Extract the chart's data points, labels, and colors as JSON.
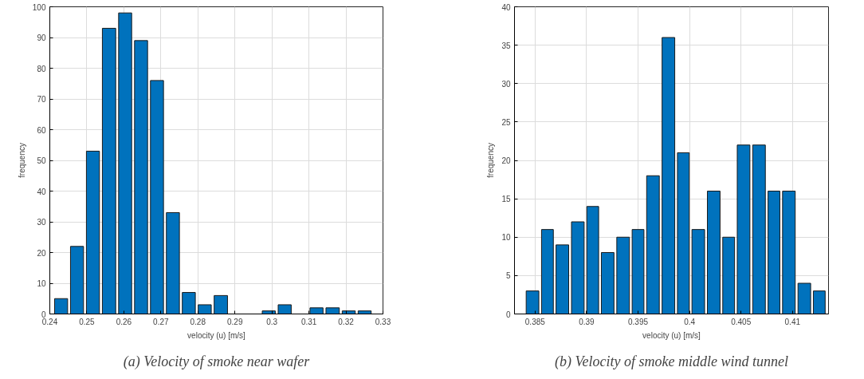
{
  "chart_data": [
    {
      "type": "histogram",
      "title": "(a) Velocity of smoke near wafer",
      "xlabel": "velocity (u) [m/s]",
      "ylabel": "frequency",
      "color": "#0072bd",
      "bins": [
        0.2409,
        0.2452,
        0.2495,
        0.2538,
        0.2582,
        0.2625,
        0.2668,
        0.2711,
        0.2754,
        0.2797,
        0.284,
        0.2884,
        0.2927,
        0.297,
        0.3013,
        0.3056,
        0.3099,
        0.3142,
        0.3186,
        0.3229,
        0.3272
      ],
      "values": [
        5,
        22,
        53,
        93,
        98,
        89,
        76,
        33,
        7,
        3,
        6,
        0,
        0,
        1,
        3,
        0,
        2,
        2,
        1,
        1
      ],
      "xlim": [
        0.24,
        0.33
      ],
      "ylim": [
        0,
        100
      ],
      "xticks": [
        0.24,
        0.25,
        0.26,
        0.27,
        0.28,
        0.29,
        0.3,
        0.31,
        0.32,
        0.33
      ],
      "yticks": [
        0,
        10,
        20,
        30,
        40,
        50,
        60,
        70,
        80,
        90,
        100
      ],
      "grid": true
    },
    {
      "type": "histogram",
      "title": "(b) Velocity of smoke middle wind tunnel",
      "xlabel": "velocity (u) [m/s]",
      "ylabel": "frequency",
      "color": "#0072bd",
      "bins": [
        0.384,
        0.3855,
        0.3869,
        0.3884,
        0.3899,
        0.3913,
        0.3928,
        0.3943,
        0.3957,
        0.3972,
        0.3987,
        0.4001,
        0.4016,
        0.4031,
        0.4045,
        0.406,
        0.4075,
        0.4089,
        0.4104,
        0.4119,
        0.4133
      ],
      "values": [
        3,
        11,
        9,
        12,
        14,
        8,
        10,
        11,
        18,
        36,
        21,
        11,
        16,
        10,
        22,
        22,
        16,
        16,
        4,
        3
      ],
      "xlim": [
        0.383,
        0.4135
      ],
      "ylim": [
        0,
        40
      ],
      "xticks": [
        0.385,
        0.39,
        0.395,
        0.4,
        0.405,
        0.41
      ],
      "yticks": [
        0,
        5,
        10,
        15,
        20,
        25,
        30,
        35,
        40
      ],
      "grid": true
    }
  ]
}
